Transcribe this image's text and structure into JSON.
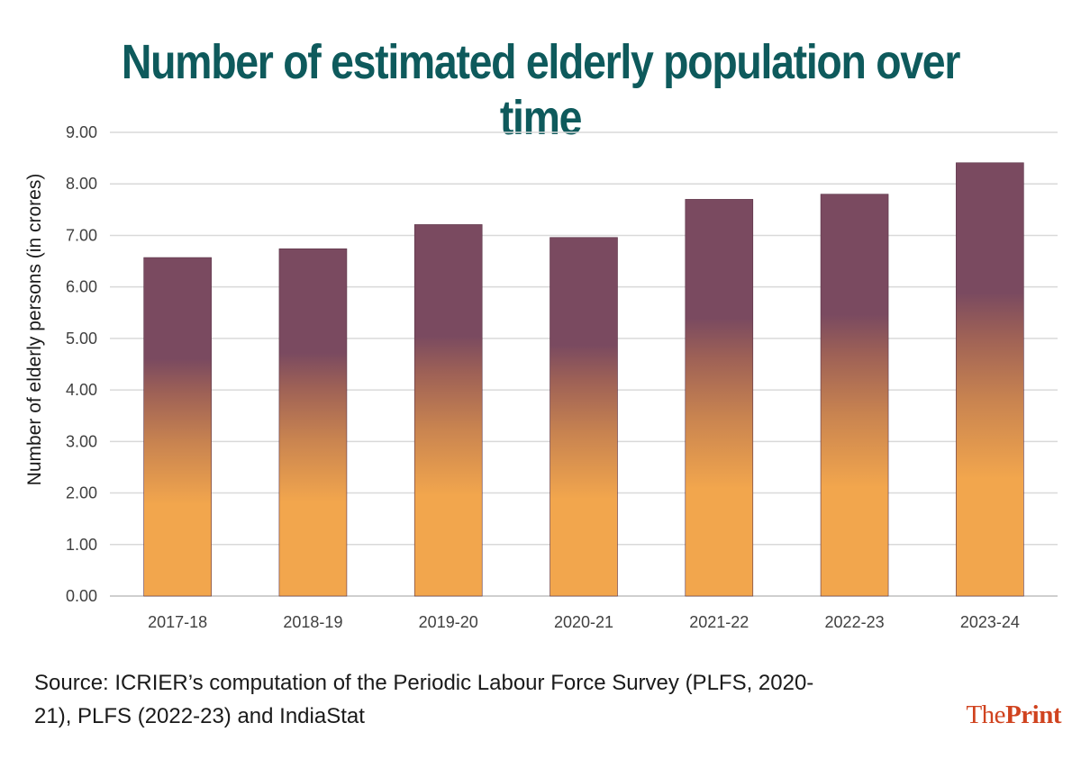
{
  "title": "Number of estimated elderly population over time",
  "source": "Source: ICRIER’s computation of the Periodic Labour Force Survey (PLFS, 2020-21), PLFS (2022-23) and IndiaStat",
  "logo": {
    "part1": "The",
    "part2": "Print"
  },
  "colors": {
    "bar_top": "#7a4a60",
    "bar_bottom": "#f2a64d",
    "title": "#0e5a5c",
    "grid": "#d9d9d9"
  },
  "chart_data": {
    "type": "bar",
    "categories": [
      "2017-18",
      "2018-19",
      "2019-20",
      "2020-21",
      "2021-22",
      "2022-23",
      "2023-24"
    ],
    "values": [
      6.57,
      6.74,
      7.21,
      6.96,
      7.7,
      7.8,
      8.41
    ],
    "ylabel": "Number of elderly persons (in crores)",
    "xlabel": "",
    "ylim": [
      0,
      9
    ],
    "yticks": [
      "0.00",
      "1.00",
      "2.00",
      "3.00",
      "4.00",
      "5.00",
      "6.00",
      "7.00",
      "8.00",
      "9.00"
    ],
    "grid": true,
    "legend": "none"
  }
}
